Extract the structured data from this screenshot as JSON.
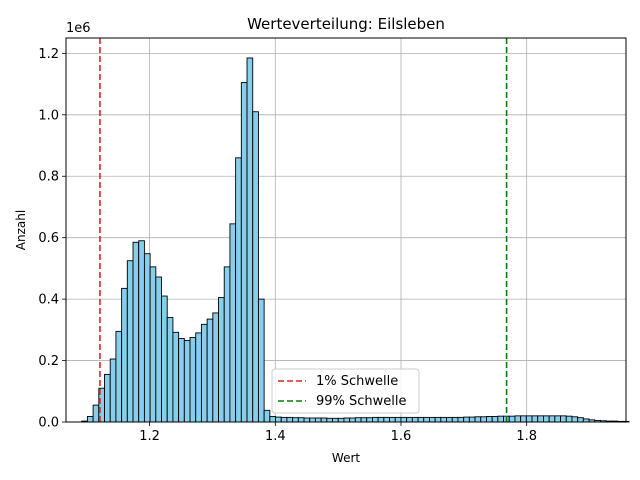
{
  "chart_data": {
    "type": "bar",
    "title": "Werteverteilung: Eilsleben",
    "xlabel": "Wert",
    "ylabel": "Anzahl",
    "y_scale_label": "1e6",
    "xlim": [
      1.067,
      1.958
    ],
    "ylim": [
      0,
      1.25
    ],
    "xticks": [
      1.2,
      1.4,
      1.6,
      1.8
    ],
    "xtick_labels": [
      "1.2",
      "1.4",
      "1.6",
      "1.8"
    ],
    "yticks": [
      0,
      0.2,
      0.4,
      0.6,
      0.8,
      1.0,
      1.2
    ],
    "ytick_labels": [
      "0.0",
      "0.2",
      "0.4",
      "0.6",
      "0.8",
      "1.0",
      "1.2"
    ],
    "grid": true,
    "bar_color": "#87ceeb",
    "bar_edge_color": "#000000",
    "bin_start": 1.092,
    "bin_width": 0.00907,
    "values": [
      0.003,
      0.018,
      0.055,
      0.11,
      0.155,
      0.205,
      0.295,
      0.435,
      0.525,
      0.585,
      0.59,
      0.548,
      0.505,
      0.472,
      0.41,
      0.34,
      0.292,
      0.272,
      0.265,
      0.275,
      0.29,
      0.318,
      0.335,
      0.355,
      0.405,
      0.505,
      0.645,
      0.86,
      1.105,
      1.185,
      1.01,
      0.4,
      0.038,
      0.018,
      0.016,
      0.015,
      0.015,
      0.014,
      0.014,
      0.013,
      0.013,
      0.013,
      0.013,
      0.012,
      0.012,
      0.012,
      0.013,
      0.013,
      0.014,
      0.014,
      0.014,
      0.015,
      0.015,
      0.015,
      0.015,
      0.015,
      0.015,
      0.015,
      0.015,
      0.015,
      0.015,
      0.015,
      0.015,
      0.015,
      0.015,
      0.015,
      0.015,
      0.016,
      0.016,
      0.017,
      0.017,
      0.018,
      0.018,
      0.019,
      0.019,
      0.019,
      0.02,
      0.02,
      0.02,
      0.02,
      0.02,
      0.02,
      0.02,
      0.02,
      0.02,
      0.019,
      0.017,
      0.014,
      0.01,
      0.007,
      0.005,
      0.004,
      0.003,
      0.003,
      0.002,
      0.002
    ],
    "thresholds": [
      {
        "name": "1% Schwelle",
        "x": 1.121,
        "color": "#d62728"
      },
      {
        "name": "99% Schwelle",
        "x": 1.768,
        "color": "#008000"
      }
    ],
    "legend_position": "lower center"
  }
}
